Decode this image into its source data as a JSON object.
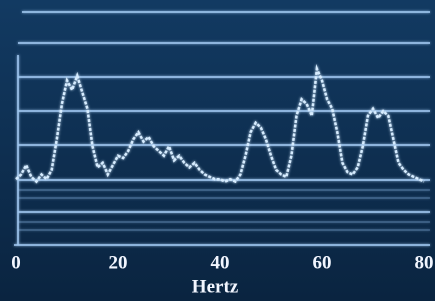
{
  "chart_data": {
    "type": "line",
    "x_label": "Hertz",
    "x": [
      0,
      1,
      2,
      3,
      4,
      5,
      6,
      7,
      8,
      9,
      10,
      11,
      12,
      13,
      14,
      15,
      16,
      17,
      18,
      19,
      20,
      21,
      22,
      23,
      24,
      25,
      26,
      27,
      28,
      29,
      30,
      31,
      32,
      33,
      34,
      35,
      36,
      37,
      38,
      39,
      40,
      41,
      42,
      43,
      44,
      45,
      46,
      47,
      48,
      49,
      50,
      51,
      52,
      53,
      54,
      55,
      56,
      57,
      58,
      59,
      60,
      61,
      62,
      63,
      64,
      65,
      66,
      67,
      68,
      69,
      70,
      71,
      72,
      73,
      74,
      75,
      76,
      77,
      78,
      79,
      80
    ],
    "values": [
      28,
      30,
      34,
      29,
      27,
      30,
      28,
      32,
      45,
      60,
      70,
      66,
      72,
      65,
      58,
      42,
      33,
      35,
      30,
      34,
      38,
      37,
      40,
      45,
      48,
      44,
      46,
      42,
      40,
      38,
      42,
      36,
      38,
      35,
      33,
      35,
      32,
      30,
      29,
      28,
      28,
      27,
      28,
      27,
      30,
      38,
      48,
      52,
      50,
      45,
      38,
      32,
      30,
      29,
      38,
      55,
      62,
      60,
      55,
      75,
      70,
      62,
      58,
      48,
      35,
      31,
      30,
      33,
      42,
      55,
      58,
      54,
      57,
      55,
      45,
      35,
      32,
      30,
      29,
      28,
      27
    ],
    "color": "#d6ecff",
    "xlim": [
      0,
      80
    ],
    "xticks": [
      0,
      20,
      40,
      60,
      80
    ],
    "ylim": [
      0,
      100
    ]
  }
}
